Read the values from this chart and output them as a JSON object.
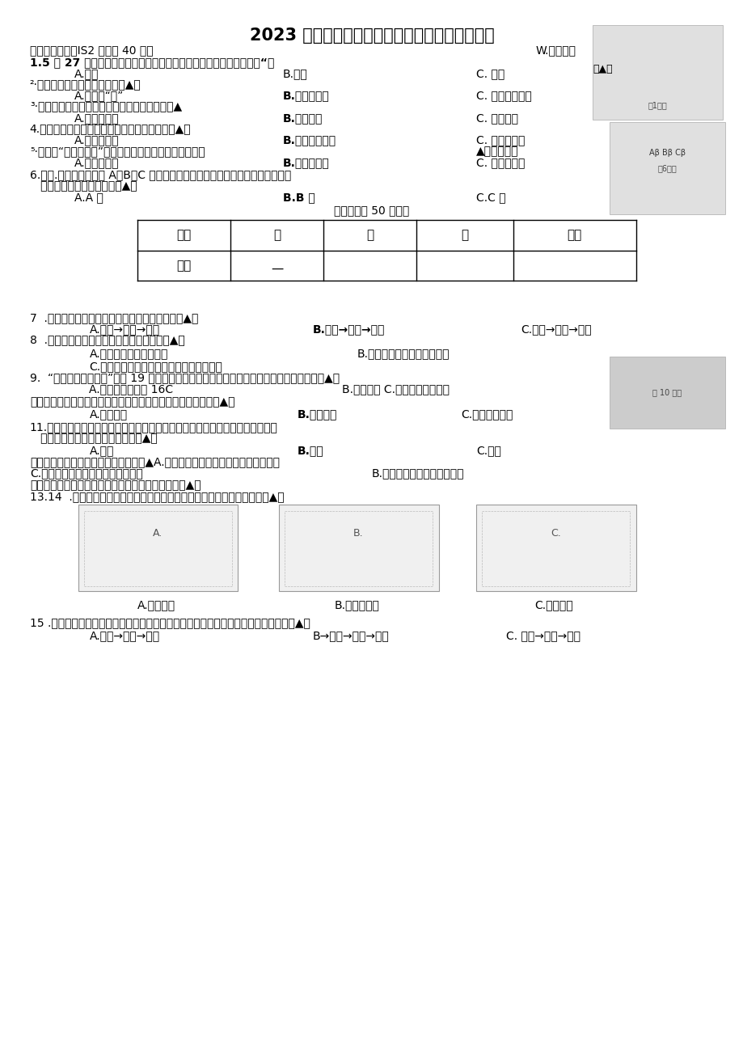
{
  "title": "2023 学年第二学期小学科学五年级学业质量检测",
  "bg_color": "#ffffff",
  "section1": "一、选择题（每IS2 分，共 40 分）",
  "section1_right": "W.才力安白",
  "q1": "1.5 月 27 日，温州首届国际帆船节拉开帷幕，帆船（如图）前进的工“、",
  "q1a": "A.水力",
  "q1b": "B.人力",
  "q1c": "C. 风力",
  "q1_tri": "（▲）",
  "q2": "²·下列现象属于水的蒸发的是（▲）",
  "q2a": "A.眼镜起“雾”",
  "q2b": "B.湿衣服晴干",
  "q2c": "C. 冬天湖水结冰",
  "q3": "³·把橡皮泥捿成如下形状，有可能浮起来的是（▲",
  "q3a": "A.空心饺子形",
  "q3b": "B.实心球体",
  "q3c": "C. 实心方块",
  "q4": "4.以下资源中，与纸张一样都属于可再生的是（▲）",
  "q4a": "A.金属、石油",
  "q4b": "B.塑料、天然气",
  "q4c": "C. 玻璃、塑料",
  "q5": "⁵·通过对“蜖蛚的选择”的实验研究，我们发现蜖蛚喜欢（",
  "q5_right": "▲）的环境。",
  "q5a": "A.黑暗、干燥",
  "q5b": "B.黑暗、潮湿",
  "q5c": "C. 明亮、潮湿",
  "q6": "6.如图.在一根金属条的 A、B、C 点上分别用蜡油固定牙签，用酒精灯加热一段时",
  "q6_2": "   间后，牙签最先落下的是（▲）",
  "q6a": "A.A 点",
  "q6b": "B.B 点",
  "q6c": "C.C 点",
  "time_label": "（检测时间 50 分钟）",
  "table_row1": [
    "鹿号",
    "一",
    "二",
    "三",
    "总分"
  ],
  "table_row1_sub": "—",
  "table_row2": [
    "得分"
  ],
  "q7": "7  .下列关于制作小船的活动环节排序正确的是（▲）",
  "q7a": "A.制作→设计→测试",
  "q7b": "B.设计→制作→测试",
  "q7c": "C.设计→测试→制作",
  "q8": "8  .下列关于小船制作活动的说法正确的是（▲）",
  "q8a": "A.小组成员需要分工合作",
  "q8b": "B.船制作好后，任务就完成了",
  "q8c": "C.计算成本时不需要考虑制作中报废的材料",
  "q9": "9.  “环保、低碳、节能”是第 19 届杭州亚运会的办会理念，下列做法中属于节约能源的是（▲）",
  "q9a": "A.夏天空调设置到 16C",
  "q9bc": "B.随手关灯 C.手机亮度调至最亮",
  "q10": "游玩江心屿时，我们常乘坐渡轮，渡轮底部做得宽主要是为了（▲）",
  "q10a": "A.更加美观",
  "q10b": "B.更加稳定",
  "q10c": "C.行驶速度更快",
  "q11": "11.在探究种子发芽条件的实验中，小鹿将种子分成两组，分别放置在干燥和湿润",
  "q11_2": "   的环境中，该实验改变的条件是（▲）",
  "q11a": "A.水分",
  "q11b": "B.温度",
  "q11c": "C.光照",
  "q12": "下列关于生物与环境的描述正确的是（▲A.不同环境的植物对水分的需求是相同的",
  "q12c": "C.环境温度变化不会影响动物的行为",
  "q12b": "B.动物通过消耗食物获得能量",
  "q13": "下列示意图中，能正确表示热在水中传递过程的是（▲）",
  "q1314": "13.14  .实施垃圾分类投放有利于改善环境，小鹿家产生的剩菜剩饭属于（▲）",
  "q1314a": "A.厨余垃圾",
  "q1314b": "B.可回收垃圾",
  "q1314c": "C.其他垃圾",
  "q15": "15 .蜕衦是水稺田里的主要害虫，青蛙是它们的天敌之一，下列食物链描述正确的是（▲）",
  "q15a": "A.水稺→青蛙→蜕衦",
  "q15b": "B→青蛙→蜕衦→水稺",
  "q15c": "C. 水稺→蜕衦→青蛙",
  "img1_label": "第1题图",
  "img6_label": "第6题图",
  "img10_label": "第 10 题图"
}
